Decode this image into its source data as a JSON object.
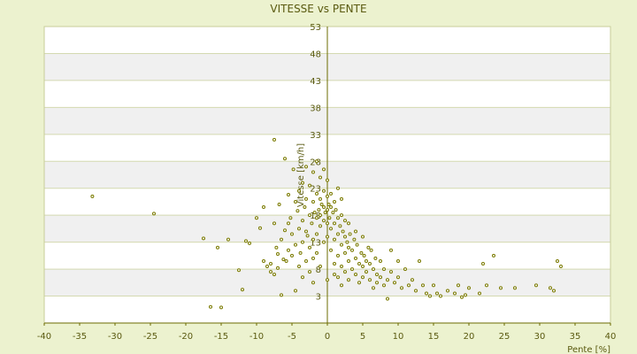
{
  "chart_data": {
    "type": "scatter",
    "title": "VITESSE vs PENTE",
    "xlabel": "Pente [%]",
    "ylabel": "Vitesse [km/h]",
    "xlim": [
      -40,
      40
    ],
    "ylim": [
      -2,
      53
    ],
    "x_ticks": [
      "-40",
      "-35",
      "-30",
      "-25",
      "-20",
      "-15",
      "-10",
      "-5",
      "0",
      "5",
      "10",
      "15",
      "20",
      "25",
      "30",
      "35",
      "40"
    ],
    "y_ticks": [
      "3",
      "8",
      "13",
      "18",
      "23",
      "28",
      "33",
      "38",
      "43",
      "48",
      "53"
    ],
    "grid": true,
    "legend": "none",
    "colors": {
      "background": "#ecf2cf",
      "plot_band_a": "#ffffff",
      "plot_band_b": "#f0f0f0",
      "axis": "#6b6b00",
      "marker": "#7a7a00"
    },
    "points": [
      [
        -33.2,
        21.5
      ],
      [
        -24.5,
        18.3
      ],
      [
        -17.5,
        13.7
      ],
      [
        -16.5,
        1.0
      ],
      [
        -15.0,
        0.9
      ],
      [
        -15.5,
        12.0
      ],
      [
        -14.0,
        13.5
      ],
      [
        -12.5,
        7.8
      ],
      [
        -12.0,
        4.2
      ],
      [
        -11.5,
        13.2
      ],
      [
        -11.0,
        12.8
      ],
      [
        -10.0,
        17.5
      ],
      [
        -9.5,
        15.6
      ],
      [
        -9.0,
        19.5
      ],
      [
        -9.0,
        9.5
      ],
      [
        -8.5,
        8.5
      ],
      [
        -8.0,
        9.0
      ],
      [
        -8.0,
        7.5
      ],
      [
        -7.5,
        16.5
      ],
      [
        -7.5,
        7.0
      ],
      [
        -7.5,
        32.0
      ],
      [
        -7.2,
        12.0
      ],
      [
        -7.0,
        10.8
      ],
      [
        -7.0,
        8.2
      ],
      [
        -6.8,
        20.0
      ],
      [
        -6.5,
        13.5
      ],
      [
        -6.5,
        3.2
      ],
      [
        -6.2,
        9.8
      ],
      [
        -6.0,
        28.5
      ],
      [
        -6.0,
        15.2
      ],
      [
        -5.8,
        9.5
      ],
      [
        -5.5,
        16.5
      ],
      [
        -5.5,
        11.5
      ],
      [
        -5.5,
        21.8
      ],
      [
        -5.2,
        17.5
      ],
      [
        -5.0,
        14.5
      ],
      [
        -5.0,
        10.5
      ],
      [
        -4.8,
        26.5
      ],
      [
        -4.5,
        20.5
      ],
      [
        -4.5,
        12.5
      ],
      [
        -4.5,
        4.0
      ],
      [
        -4.2,
        18.8
      ],
      [
        -4.0,
        22.5
      ],
      [
        -4.0,
        15.5
      ],
      [
        -4.0,
        8.5
      ],
      [
        -3.8,
        11.0
      ],
      [
        -3.5,
        24.0
      ],
      [
        -3.5,
        17.0
      ],
      [
        -3.5,
        13.0
      ],
      [
        -3.5,
        6.5
      ],
      [
        -3.2,
        19.5
      ],
      [
        -3.0,
        27.0
      ],
      [
        -3.0,
        21.0
      ],
      [
        -3.0,
        15.0
      ],
      [
        -3.0,
        9.5
      ],
      [
        -2.8,
        14.2
      ],
      [
        -2.5,
        23.5
      ],
      [
        -2.5,
        18.0
      ],
      [
        -2.5,
        12.0
      ],
      [
        -2.5,
        7.5
      ],
      [
        -2.2,
        16.5
      ],
      [
        -2.0,
        26.0
      ],
      [
        -2.0,
        20.5
      ],
      [
        -2.0,
        13.5
      ],
      [
        -2.0,
        10.0
      ],
      [
        -2.0,
        5.5
      ],
      [
        -1.8,
        18.5
      ],
      [
        -1.5,
        28.0
      ],
      [
        -1.5,
        22.0
      ],
      [
        -1.5,
        17.5
      ],
      [
        -1.5,
        14.5
      ],
      [
        -1.5,
        11.0
      ],
      [
        -1.2,
        19.0
      ],
      [
        -1.0,
        25.0
      ],
      [
        -1.0,
        21.0
      ],
      [
        -1.0,
        18.0
      ],
      [
        -1.0,
        16.0
      ],
      [
        -1.0,
        8.5
      ],
      [
        -0.8,
        20.0
      ],
      [
        -0.5,
        26.5
      ],
      [
        -0.5,
        22.5
      ],
      [
        -0.5,
        19.5
      ],
      [
        -0.5,
        17.0
      ],
      [
        -0.5,
        13.0
      ],
      [
        -0.3,
        18.5
      ],
      [
        0.0,
        24.5
      ],
      [
        0.0,
        21.5
      ],
      [
        0.0,
        19.0
      ],
      [
        0.0,
        16.5
      ],
      [
        0.0,
        14.0
      ],
      [
        0.0,
        6.0
      ],
      [
        0.2,
        20.0
      ],
      [
        0.3,
        17.5
      ],
      [
        0.5,
        22.0
      ],
      [
        0.5,
        19.5
      ],
      [
        0.5,
        15.5
      ],
      [
        0.5,
        11.5
      ],
      [
        0.8,
        18.5
      ],
      [
        1.0,
        20.5
      ],
      [
        1.0,
        16.5
      ],
      [
        1.0,
        13.5
      ],
      [
        1.0,
        9.0
      ],
      [
        1.0,
        7.0
      ],
      [
        1.2,
        19.0
      ],
      [
        1.5,
        23.0
      ],
      [
        1.5,
        17.5
      ],
      [
        1.5,
        14.5
      ],
      [
        1.5,
        10.5
      ],
      [
        1.5,
        6.5
      ],
      [
        1.8,
        16.0
      ],
      [
        2.0,
        21.0
      ],
      [
        2.0,
        18.0
      ],
      [
        2.0,
        12.5
      ],
      [
        2.0,
        8.5
      ],
      [
        2.0,
        5.0
      ],
      [
        2.2,
        15.0
      ],
      [
        2.5,
        17.0
      ],
      [
        2.5,
        14.0
      ],
      [
        2.5,
        11.0
      ],
      [
        2.5,
        7.5
      ],
      [
        2.8,
        13.0
      ],
      [
        3.0,
        16.5
      ],
      [
        3.0,
        12.0
      ],
      [
        3.0,
        9.5
      ],
      [
        3.0,
        6.0
      ],
      [
        3.2,
        14.5
      ],
      [
        3.5,
        11.5
      ],
      [
        3.5,
        8.0
      ],
      [
        3.8,
        13.5
      ],
      [
        4.0,
        15.0
      ],
      [
        4.0,
        10.0
      ],
      [
        4.0,
        7.0
      ],
      [
        4.2,
        12.5
      ],
      [
        4.5,
        9.0
      ],
      [
        4.5,
        5.5
      ],
      [
        4.8,
        11.0
      ],
      [
        5.0,
        14.0
      ],
      [
        5.0,
        8.5
      ],
      [
        5.0,
        6.5
      ],
      [
        5.2,
        10.5
      ],
      [
        5.5,
        9.5
      ],
      [
        5.5,
        7.5
      ],
      [
        5.8,
        12.0
      ],
      [
        6.0,
        9.0
      ],
      [
        6.0,
        6.0
      ],
      [
        6.2,
        11.5
      ],
      [
        6.5,
        8.0
      ],
      [
        6.5,
        4.5
      ],
      [
        6.8,
        10.0
      ],
      [
        7.0,
        7.0
      ],
      [
        7.0,
        5.5
      ],
      [
        7.5,
        9.5
      ],
      [
        7.5,
        6.5
      ],
      [
        8.0,
        8.0
      ],
      [
        8.0,
        5.0
      ],
      [
        8.5,
        6.0
      ],
      [
        8.5,
        2.5
      ],
      [
        9.0,
        7.5
      ],
      [
        9.0,
        11.5
      ],
      [
        9.5,
        5.5
      ],
      [
        10.0,
        9.5
      ],
      [
        10.0,
        6.5
      ],
      [
        10.5,
        4.5
      ],
      [
        11.0,
        8.0
      ],
      [
        11.5,
        5.0
      ],
      [
        12.0,
        6.0
      ],
      [
        12.5,
        4.0
      ],
      [
        13.0,
        9.5
      ],
      [
        13.5,
        5.0
      ],
      [
        14.0,
        3.5
      ],
      [
        14.5,
        3.0
      ],
      [
        15.0,
        5.0
      ],
      [
        15.5,
        3.5
      ],
      [
        16.0,
        3.0
      ],
      [
        17.0,
        4.0
      ],
      [
        18.0,
        3.5
      ],
      [
        18.5,
        5.0
      ],
      [
        19.0,
        2.8
      ],
      [
        19.5,
        3.2
      ],
      [
        20.0,
        4.5
      ],
      [
        21.5,
        3.5
      ],
      [
        22.0,
        9.0
      ],
      [
        22.5,
        5.0
      ],
      [
        23.5,
        10.5
      ],
      [
        24.5,
        4.5
      ],
      [
        26.5,
        4.5
      ],
      [
        29.5,
        5.0
      ],
      [
        31.5,
        4.5
      ],
      [
        32.0,
        4.0
      ],
      [
        32.5,
        9.5
      ],
      [
        33.0,
        8.5
      ]
    ]
  }
}
